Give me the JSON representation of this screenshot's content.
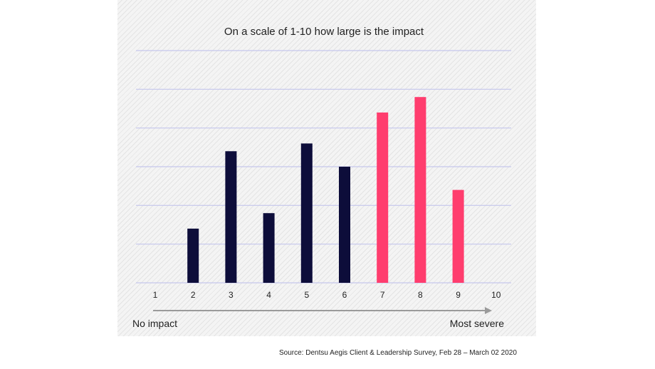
{
  "chart_data": {
    "type": "bar",
    "title": "On a scale of 1-10 how large is the impact",
    "categories": [
      "1",
      "2",
      "3",
      "4",
      "5",
      "6",
      "7",
      "8",
      "9",
      "10"
    ],
    "values": [
      0,
      1.4,
      3.4,
      1.8,
      3.6,
      3.0,
      4.4,
      4.8,
      2.4,
      0
    ],
    "bar_colors": [
      "#0d0d3a",
      "#0d0d3a",
      "#0d0d3a",
      "#0d0d3a",
      "#0d0d3a",
      "#0d0d3a",
      "#ff3d6e",
      "#ff3d6e",
      "#ff3d6e",
      "#ff3d6e"
    ],
    "ylim": [
      0,
      6
    ],
    "y_gridlines": [
      0,
      1,
      2,
      3,
      4,
      5,
      6
    ],
    "y_tick_labels_shown": false,
    "grid": true,
    "gridline_color": "#c5c6ec",
    "axis_start_label": "No impact",
    "axis_end_label": "Most severe"
  },
  "source": "Source: Dentsu Aegis Client & Leadership Survey, Feb 28 – March 02 2020"
}
